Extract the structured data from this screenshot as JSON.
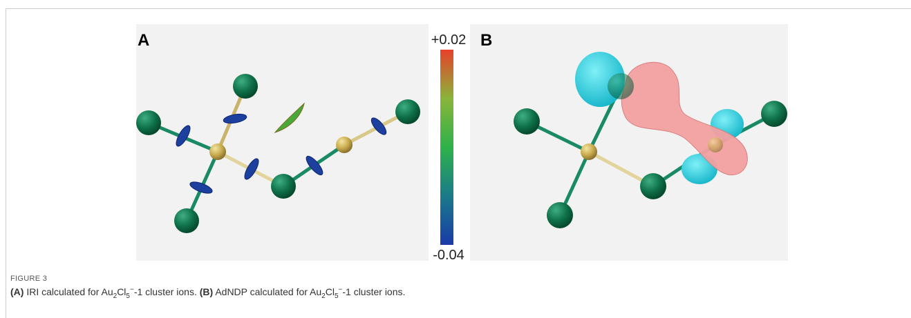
{
  "figure": {
    "panel_a_label": "A",
    "panel_b_label": "B",
    "colorbar": {
      "top_label": "+0.02",
      "bottom_label": "-0.04"
    },
    "number": "FIGURE 3",
    "caption": [
      "(A)",
      " IRI calculated for Au",
      "2",
      "Cl",
      "5",
      "−",
      "-1 cluster ions. ",
      "(B)",
      " AdNDP calculated for Au",
      "2",
      "Cl",
      "5",
      "−",
      "-1 cluster ions."
    ]
  }
}
